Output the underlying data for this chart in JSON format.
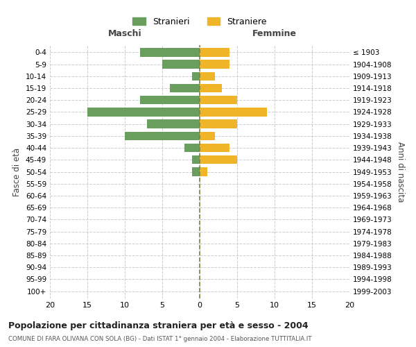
{
  "age_groups": [
    "0-4",
    "5-9",
    "10-14",
    "15-19",
    "20-24",
    "25-29",
    "30-34",
    "35-39",
    "40-44",
    "45-49",
    "50-54",
    "55-59",
    "60-64",
    "65-69",
    "70-74",
    "75-79",
    "80-84",
    "85-89",
    "90-94",
    "95-99",
    "100+"
  ],
  "birth_years": [
    "1999-2003",
    "1994-1998",
    "1989-1993",
    "1984-1988",
    "1979-1983",
    "1974-1978",
    "1969-1973",
    "1964-1968",
    "1959-1963",
    "1954-1958",
    "1949-1953",
    "1944-1948",
    "1939-1943",
    "1934-1938",
    "1929-1933",
    "1924-1928",
    "1919-1923",
    "1914-1918",
    "1909-1913",
    "1904-1908",
    "≤ 1903"
  ],
  "males": [
    8,
    5,
    1,
    4,
    8,
    15,
    7,
    10,
    2,
    1,
    1,
    0,
    0,
    0,
    0,
    0,
    0,
    0,
    0,
    0,
    0
  ],
  "females": [
    4,
    4,
    2,
    3,
    5,
    9,
    5,
    2,
    4,
    5,
    1,
    0,
    0,
    0,
    0,
    0,
    0,
    0,
    0,
    0,
    0
  ],
  "male_color": "#6a9e5f",
  "female_color": "#f0b429",
  "male_label": "Stranieri",
  "female_label": "Straniere",
  "xlim": 20,
  "title": "Popolazione per cittadinanza straniera per età e sesso - 2004",
  "subtitle": "COMUNE DI FARA OLIVANA CON SOLA (BG) - Dati ISTAT 1° gennaio 2004 - Elaborazione TUTTITALIA.IT",
  "ylabel_left": "Fasce di età",
  "ylabel_right": "Anni di nascita",
  "xlabel_left": "Maschi",
  "xlabel_right": "Femmine",
  "bg_color": "#ffffff",
  "grid_color": "#cccccc",
  "center_line_color": "#808040"
}
